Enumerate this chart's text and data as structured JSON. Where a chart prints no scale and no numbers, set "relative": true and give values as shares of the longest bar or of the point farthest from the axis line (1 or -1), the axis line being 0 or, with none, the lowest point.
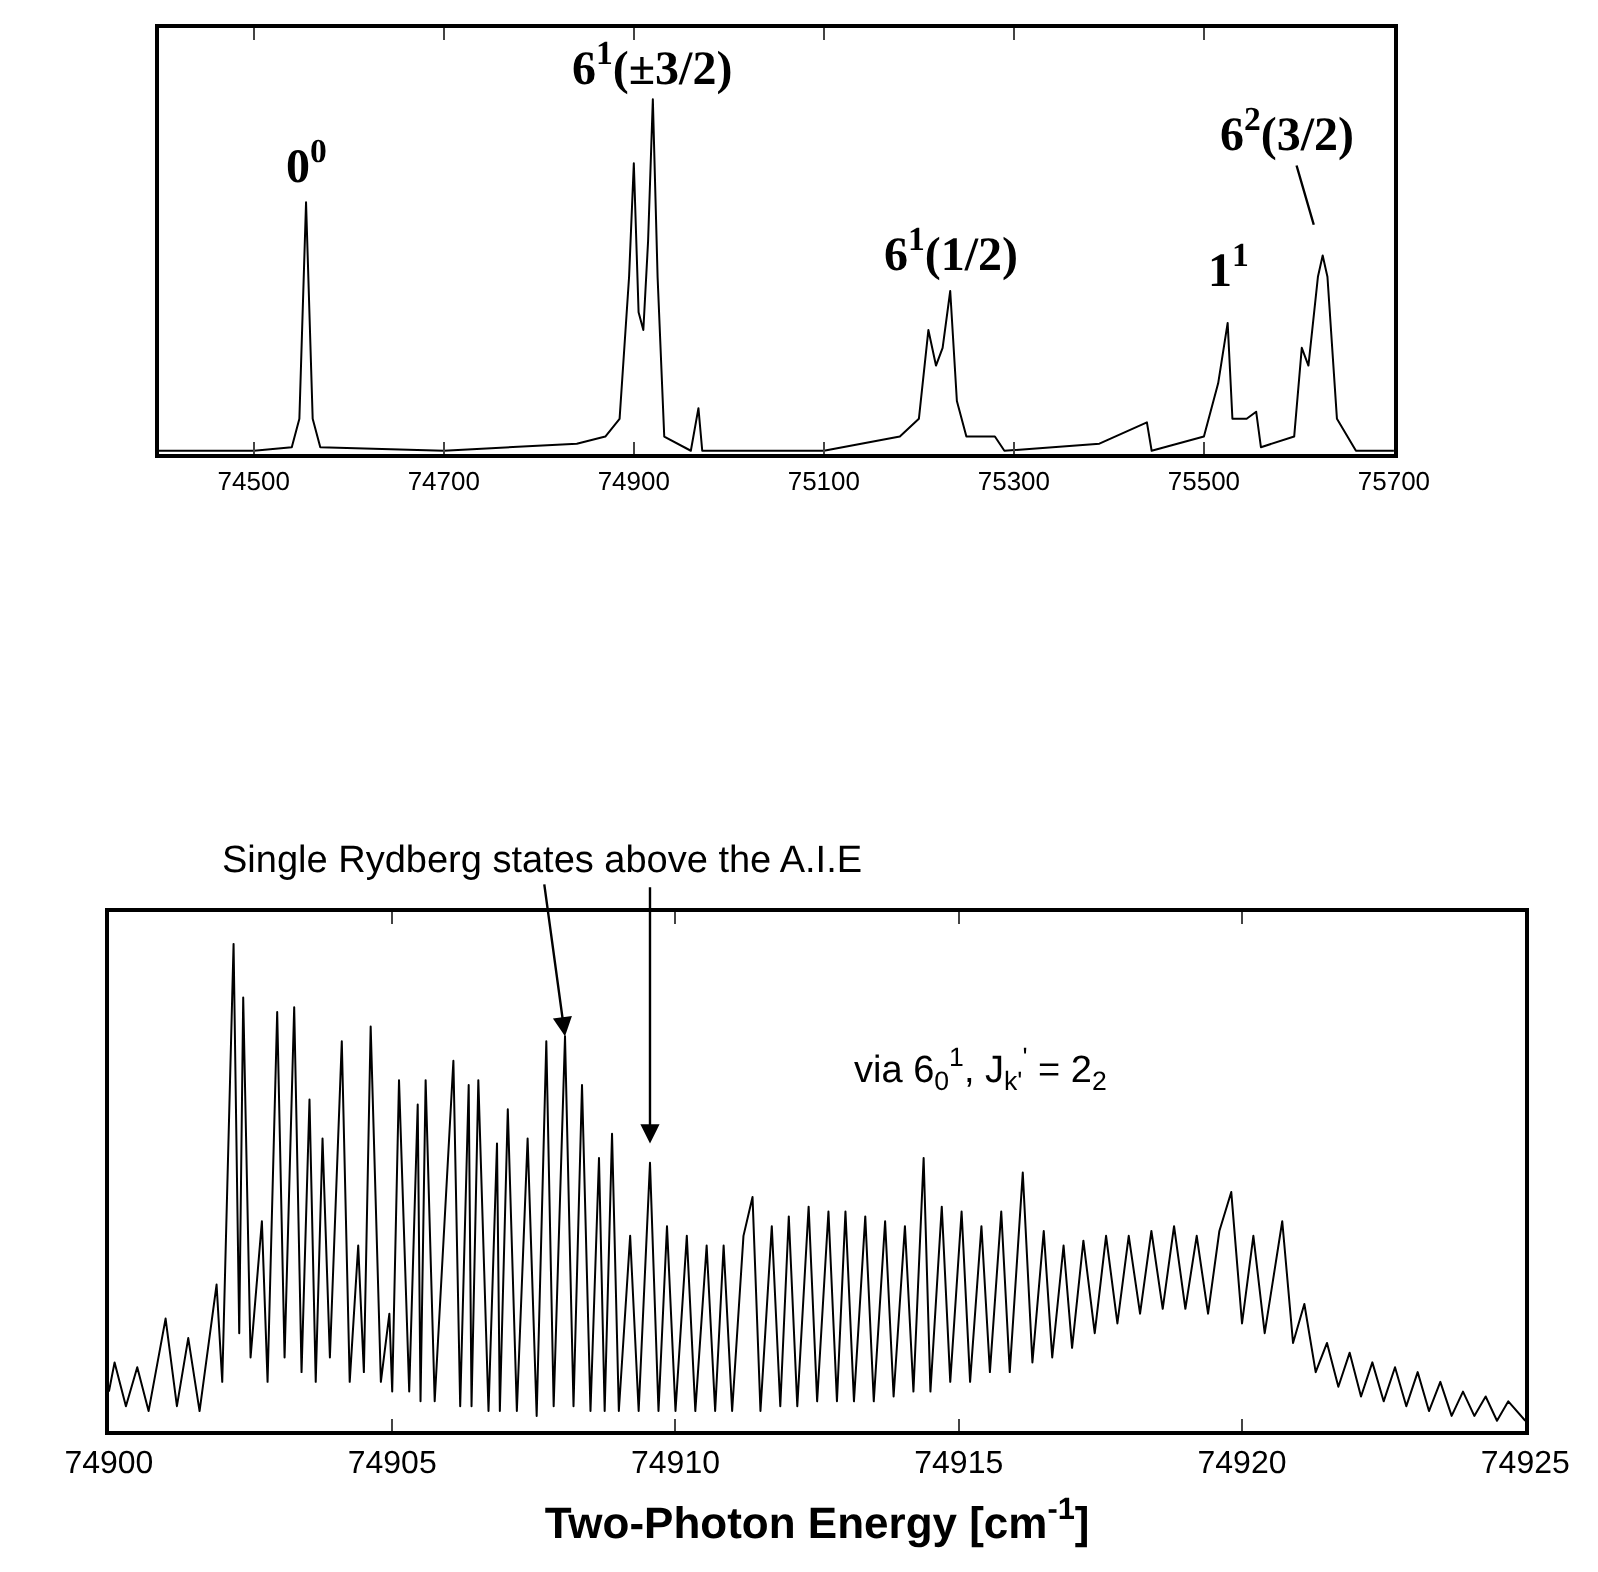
{
  "chart_data": [
    {
      "type": "line",
      "relative": true,
      "xlim": [
        74400,
        75700
      ],
      "xticks": [
        74500,
        74700,
        74900,
        75100,
        75300,
        75500,
        75700
      ],
      "series": [
        {
          "color": "#000000",
          "x": [
            74400,
            74500,
            74540,
            74548,
            74555,
            74562,
            74570,
            74700,
            74840,
            74870,
            74885,
            74895,
            74900,
            74905,
            74910,
            74915,
            74920,
            74925,
            74932,
            74960,
            74968,
            74972,
            75100,
            75180,
            75200,
            75210,
            75218,
            75225,
            75233,
            75240,
            75250,
            75280,
            75290,
            75390,
            75440,
            75445,
            75500,
            75515,
            75525,
            75530,
            75545,
            75555,
            75560,
            75595,
            75603,
            75610,
            75620,
            75625,
            75630,
            75640,
            75660,
            75700
          ],
          "values": [
            0.01,
            0.01,
            0.02,
            0.1,
            0.71,
            0.1,
            0.02,
            0.01,
            0.03,
            0.05,
            0.1,
            0.5,
            0.82,
            0.4,
            0.35,
            0.6,
            1,
            0.5,
            0.05,
            0.01,
            0.13,
            0.01,
            0.01,
            0.05,
            0.1,
            0.35,
            0.25,
            0.3,
            0.46,
            0.15,
            0.05,
            0.05,
            0.01,
            0.03,
            0.09,
            0.01,
            0.05,
            0.2,
            0.37,
            0.1,
            0.1,
            0.12,
            0.02,
            0.05,
            0.3,
            0.25,
            0.5,
            0.56,
            0.5,
            0.1,
            0.01,
            0.01
          ]
        }
      ],
      "annotations": [
        {
          "text": "0$^{0}$",
          "x": 74555,
          "y": 0.71
        },
        {
          "text": "6$^{1}$(±3/2)",
          "x": 74920,
          "y": 1
        },
        {
          "text": "6$^{1}$(1/2)",
          "x": 75233,
          "y": 0.46
        },
        {
          "text": "1$^{1}$",
          "x": 75525,
          "y": 0.37
        },
        {
          "text": "6$^{2}$(3/2)",
          "x": 75625,
          "y": 0.56
        }
      ]
    },
    {
      "type": "line",
      "relative": true,
      "xlim": [
        74900,
        74925
      ],
      "xticks": [
        74900,
        74905,
        74910,
        74915,
        74920,
        74925
      ],
      "xlabel": "Two-Photon Energy [cm$^{-1}$]",
      "series": [
        {
          "color": "#000000",
          "x": [
            74900.0,
            74900.1,
            74900.3,
            74900.5,
            74900.7,
            74901.0,
            74901.2,
            74901.4,
            74901.6,
            74901.9,
            74902.0,
            74902.2,
            74902.3,
            74902.37,
            74902.5,
            74902.7,
            74902.8,
            74902.97,
            74903.1,
            74903.27,
            74903.4,
            74903.54,
            74903.65,
            74903.77,
            74903.9,
            74904.11,
            74904.25,
            74904.4,
            74904.5,
            74904.62,
            74904.8,
            74904.95,
            74905.0,
            74905.12,
            74905.3,
            74905.45,
            74905.5,
            74905.59,
            74905.75,
            74906.08,
            74906.2,
            74906.35,
            74906.4,
            74906.52,
            74906.7,
            74906.85,
            74906.9,
            74907.04,
            74907.2,
            74907.39,
            74907.55,
            74907.72,
            74907.85,
            74908.05,
            74908.2,
            74908.35,
            74908.5,
            74908.65,
            74908.75,
            74908.88,
            74909.0,
            74909.2,
            74909.35,
            74909.55,
            74909.7,
            74909.85,
            74910.0,
            74910.2,
            74910.35,
            74910.55,
            74910.7,
            74910.85,
            74911.0,
            74911.2,
            74911.36,
            74911.5,
            74911.7,
            74911.85,
            74912.0,
            74912.15,
            74912.35,
            74912.5,
            74912.7,
            74912.85,
            74913.0,
            74913.15,
            74913.35,
            74913.5,
            74913.7,
            74913.85,
            74914.05,
            74914.2,
            74914.38,
            74914.5,
            74914.7,
            74914.85,
            74915.05,
            74915.2,
            74915.4,
            74915.55,
            74915.75,
            74915.9,
            74916.13,
            74916.3,
            74916.5,
            74916.65,
            74916.85,
            74917.0,
            74917.2,
            74917.4,
            74917.6,
            74917.8,
            74918.0,
            74918.2,
            74918.4,
            74918.6,
            74918.8,
            74919.0,
            74919.2,
            74919.4,
            74919.6,
            74919.81,
            74920.0,
            74920.2,
            74920.4,
            74920.71,
            74920.9,
            74921.1,
            74921.3,
            74921.5,
            74921.7,
            74921.9,
            74922.1,
            74922.3,
            74922.5,
            74922.7,
            74922.9,
            74923.1,
            74923.3,
            74923.5,
            74923.7,
            74923.9,
            74924.1,
            74924.3,
            74924.5,
            74924.7,
            74925.0
          ],
          "values": [
            0.08,
            0.14,
            0.05,
            0.13,
            0.04,
            0.23,
            0.05,
            0.19,
            0.04,
            0.3,
            0.1,
            1.0,
            0.2,
            0.89,
            0.15,
            0.43,
            0.1,
            0.86,
            0.15,
            0.87,
            0.12,
            0.68,
            0.1,
            0.6,
            0.15,
            0.8,
            0.1,
            0.38,
            0.12,
            0.83,
            0.1,
            0.24,
            0.08,
            0.72,
            0.08,
            0.67,
            0.06,
            0.72,
            0.06,
            0.76,
            0.05,
            0.71,
            0.05,
            0.72,
            0.04,
            0.59,
            0.04,
            0.66,
            0.04,
            0.6,
            0.03,
            0.8,
            0.05,
            0.81,
            0.05,
            0.71,
            0.04,
            0.56,
            0.04,
            0.61,
            0.04,
            0.4,
            0.04,
            0.55,
            0.04,
            0.42,
            0.04,
            0.4,
            0.04,
            0.38,
            0.04,
            0.38,
            0.04,
            0.4,
            0.48,
            0.04,
            0.42,
            0.05,
            0.44,
            0.05,
            0.46,
            0.06,
            0.45,
            0.06,
            0.45,
            0.06,
            0.44,
            0.06,
            0.43,
            0.07,
            0.42,
            0.08,
            0.56,
            0.08,
            0.46,
            0.1,
            0.45,
            0.1,
            0.42,
            0.12,
            0.45,
            0.12,
            0.53,
            0.14,
            0.41,
            0.15,
            0.38,
            0.17,
            0.39,
            0.2,
            0.4,
            0.22,
            0.4,
            0.24,
            0.41,
            0.25,
            0.42,
            0.25,
            0.4,
            0.24,
            0.41,
            0.49,
            0.22,
            0.4,
            0.2,
            0.43,
            0.18,
            0.26,
            0.12,
            0.18,
            0.09,
            0.16,
            0.07,
            0.14,
            0.06,
            0.13,
            0.05,
            0.12,
            0.04,
            0.1,
            0.03,
            0.08,
            0.03,
            0.07,
            0.02,
            0.06,
            0.02
          ]
        }
      ],
      "annotations": [
        {
          "text": "Single Rydberg states above the A.I.E",
          "x": 74908.05,
          "y": 0.81
        },
        "via 6$_{0}$$^{1}$, J$_{k'}$$^{'}$ = 2$_{2}$"
      ]
    }
  ]
}
